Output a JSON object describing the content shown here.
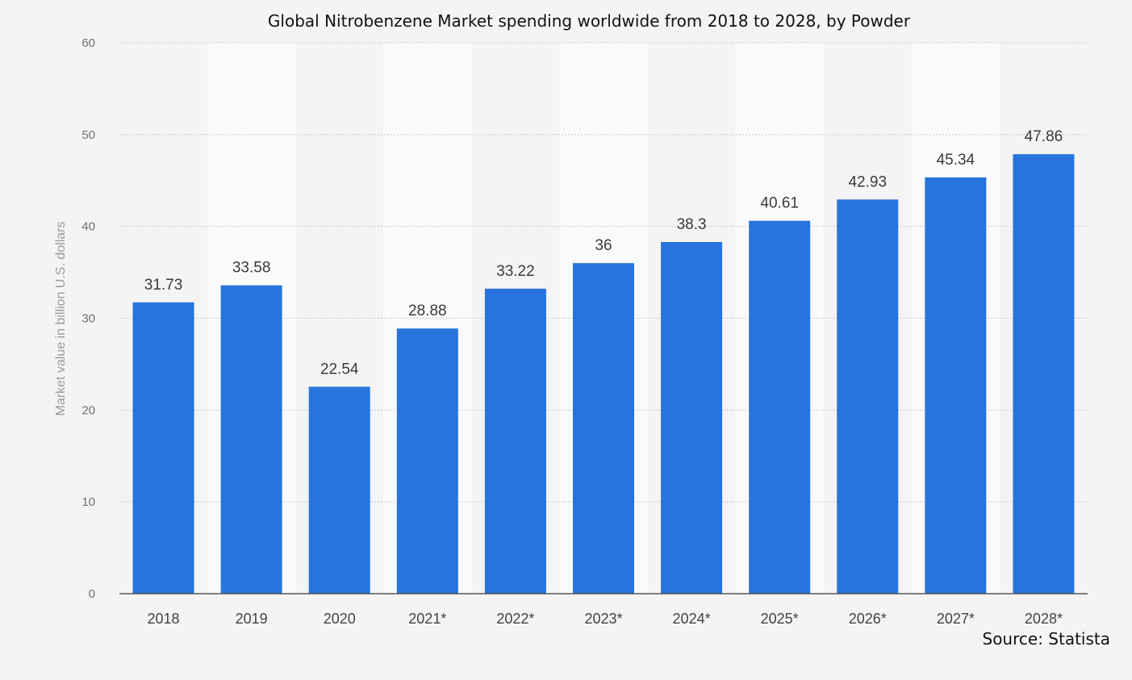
{
  "chart_data": {
    "type": "bar",
    "title": "Global Nitrobenzene Market spending worldwide from 2018 to 2028, by Powder",
    "ylabel": "Market value in billion U.S. dollars",
    "xlabel": "",
    "ylim": [
      0,
      60
    ],
    "yticks": [
      0,
      10,
      20,
      30,
      40,
      50,
      60
    ],
    "grid": true,
    "legend": "none",
    "categories": [
      "2018",
      "2019",
      "2020",
      "2021*",
      "2022*",
      "2023*",
      "2024*",
      "2025*",
      "2026*",
      "2027*",
      "2028*"
    ],
    "values": [
      31.73,
      33.58,
      22.54,
      28.88,
      33.22,
      36,
      38.3,
      40.61,
      42.93,
      45.34,
      47.86
    ],
    "value_labels": [
      "31.73",
      "33.58",
      "22.54",
      "28.88",
      "33.22",
      "36",
      "38.3",
      "40.61",
      "42.93",
      "45.34",
      "47.86"
    ],
    "bar_color": "#2874dc",
    "source": "Source: Statista"
  }
}
